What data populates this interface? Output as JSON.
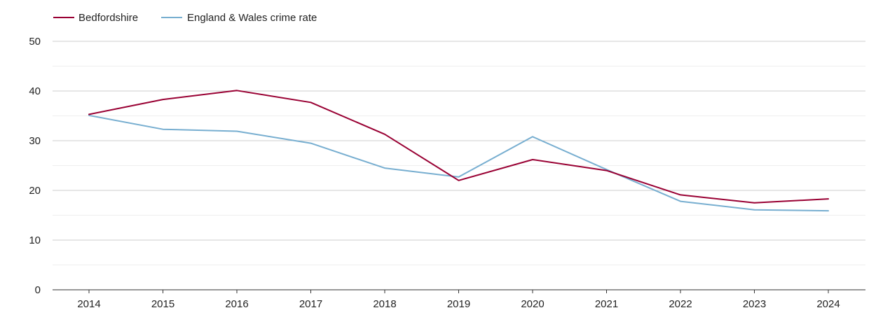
{
  "chart_data": {
    "type": "line",
    "categories": [
      "2014",
      "2015",
      "2016",
      "2017",
      "2018",
      "2019",
      "2020",
      "2021",
      "2022",
      "2023",
      "2024"
    ],
    "series": [
      {
        "name": "Bedfordshire",
        "color": "#990033",
        "values": [
          35.3,
          38.3,
          40.1,
          37.7,
          31.3,
          22.0,
          26.2,
          24.0,
          19.1,
          17.5,
          18.3
        ]
      },
      {
        "name": "England & Wales crime rate",
        "color": "#77aed0",
        "values": [
          35.1,
          32.3,
          31.9,
          29.5,
          24.5,
          22.7,
          30.8,
          24.2,
          17.8,
          16.1,
          15.9
        ]
      }
    ],
    "y_ticks": [
      "0",
      "10",
      "20",
      "30",
      "40",
      "50"
    ],
    "ylim": [
      0,
      50
    ],
    "grid": true,
    "legend": "top-left",
    "title": "",
    "xlabel": "",
    "ylabel": ""
  }
}
